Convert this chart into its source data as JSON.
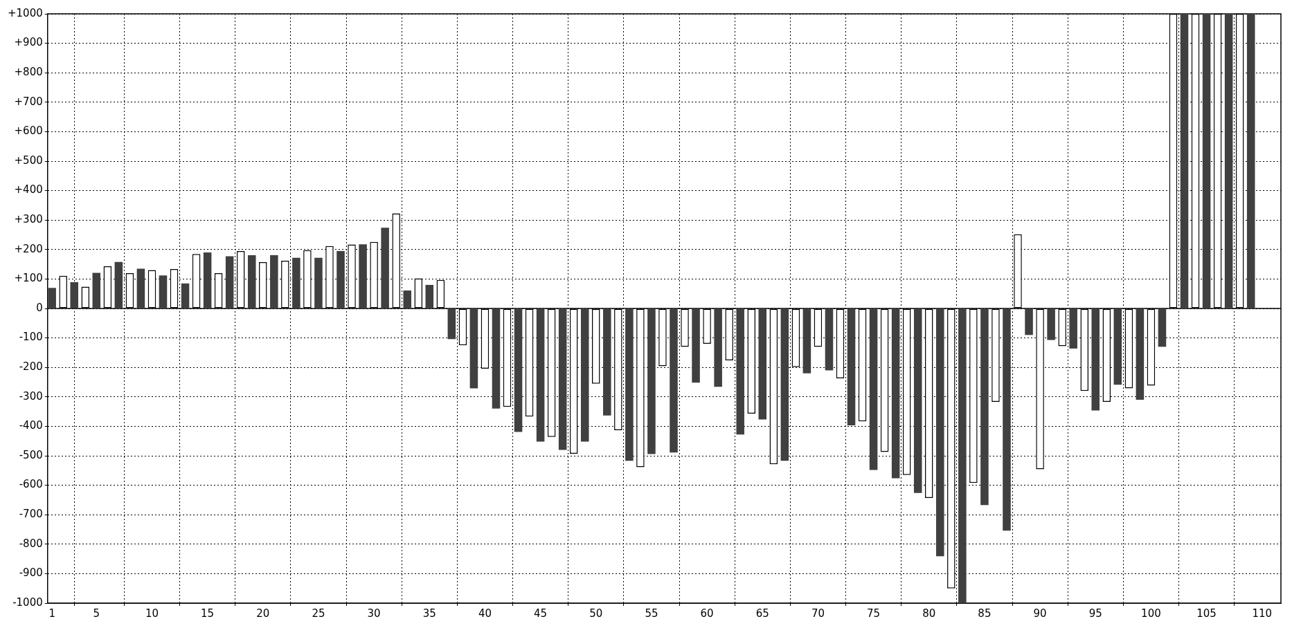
{
  "chart_data": {
    "type": "bar",
    "x": [
      1,
      2,
      3,
      4,
      5,
      6,
      7,
      8,
      9,
      10,
      11,
      12,
      13,
      14,
      15,
      16,
      17,
      18,
      19,
      20,
      21,
      22,
      23,
      24,
      25,
      26,
      27,
      28,
      29,
      30,
      31,
      32,
      33,
      34,
      35,
      36,
      37,
      38,
      39,
      40,
      41,
      42,
      43,
      44,
      45,
      46,
      47,
      48,
      49,
      50,
      51,
      52,
      53,
      54,
      55,
      56,
      57,
      58,
      59,
      60,
      61,
      62,
      63,
      64,
      65,
      66,
      67,
      68,
      69,
      70,
      71,
      72,
      73,
      74,
      75,
      76,
      77,
      78,
      79,
      80,
      81,
      82,
      83,
      84,
      85,
      86,
      87,
      88,
      89,
      90,
      91,
      92,
      93,
      94,
      95,
      96,
      97,
      98,
      99,
      100,
      101,
      102,
      103,
      104,
      105,
      106,
      107,
      108,
      109
    ],
    "values": [
      70,
      111,
      89,
      74,
      121,
      143,
      158,
      120,
      135,
      130,
      112,
      134,
      85,
      185,
      190,
      120,
      177,
      195,
      181,
      157,
      181,
      162,
      172,
      198,
      172,
      212,
      195,
      217,
      218,
      226,
      274,
      323,
      61,
      102,
      80,
      97,
      -104,
      -125,
      -271,
      -204,
      -340,
      -334,
      -419,
      -367,
      -452,
      -436,
      -480,
      -493,
      -452,
      -255,
      -363,
      -413,
      -517,
      -539,
      -494,
      -196,
      -489,
      -130,
      -252,
      -120,
      -266,
      -176,
      -428,
      -357,
      -377,
      -529,
      -517,
      -199,
      -220,
      -130,
      -210,
      -237,
      -397,
      -383,
      -548,
      -487,
      -576,
      -565,
      -626,
      -643,
      -841,
      -950,
      -1000,
      -592,
      -667,
      -317,
      -754,
      252,
      -90,
      -546,
      -107,
      -128,
      -136,
      -280,
      -346,
      -317,
      -259,
      -271,
      -310,
      -262,
      -130,
      1000,
      1000,
      1000,
      1000,
      1000,
      1000,
      1000,
      1000
    ],
    "colors": [
      "#404040",
      "#ffffff",
      "#404040",
      "#ffffff",
      "#404040",
      "#ffffff",
      "#404040",
      "#ffffff",
      "#404040",
      "#ffffff",
      "#404040",
      "#ffffff",
      "#404040",
      "#ffffff",
      "#404040",
      "#ffffff",
      "#404040",
      "#ffffff",
      "#404040",
      "#ffffff",
      "#404040",
      "#ffffff",
      "#404040",
      "#ffffff",
      "#404040",
      "#ffffff",
      "#404040",
      "#ffffff",
      "#404040",
      "#ffffff",
      "#404040",
      "#ffffff",
      "#404040",
      "#ffffff",
      "#404040",
      "#ffffff",
      "#404040",
      "#ffffff",
      "#404040",
      "#ffffff",
      "#404040",
      "#ffffff",
      "#404040",
      "#ffffff",
      "#404040",
      "#ffffff",
      "#404040",
      "#ffffff",
      "#404040",
      "#ffffff",
      "#404040",
      "#ffffff",
      "#404040",
      "#ffffff",
      "#404040",
      "#ffffff",
      "#404040",
      "#ffffff",
      "#404040",
      "#ffffff",
      "#404040",
      "#ffffff",
      "#404040",
      "#ffffff",
      "#404040",
      "#ffffff",
      "#404040",
      "#ffffff",
      "#404040",
      "#ffffff",
      "#404040",
      "#ffffff",
      "#404040",
      "#ffffff",
      "#404040",
      "#ffffff",
      "#404040",
      "#ffffff",
      "#404040",
      "#ffffff",
      "#404040",
      "#ffffff",
      "#404040",
      "#ffffff",
      "#404040",
      "#ffffff",
      "#404040",
      "#ffffff",
      "#404040",
      "#ffffff",
      "#404040",
      "#ffffff",
      "#404040",
      "#ffffff",
      "#404040",
      "#ffffff",
      "#404040",
      "#ffffff",
      "#404040",
      "#ffffff",
      "#404040",
      "#ffffff",
      "#404040",
      "#ffffff",
      "#404040",
      "#ffffff",
      "#404040",
      "#ffffff",
      "#404040"
    ],
    "xlim": [
      0.6,
      111.7
    ],
    "xticks": [
      1,
      5,
      10,
      15,
      20,
      25,
      30,
      35,
      40,
      45,
      50,
      55,
      60,
      65,
      70,
      75,
      80,
      85,
      90,
      95,
      100,
      105,
      110
    ],
    "ylim": [
      -1000,
      1000
    ],
    "yticks": [
      -1000,
      -900,
      -800,
      -700,
      -600,
      -500,
      -400,
      -300,
      -200,
      -100,
      0,
      {
        "value": 100,
        "label": "+100"
      },
      {
        "value": 200,
        "label": "+200"
      },
      {
        "value": 300,
        "label": "+300"
      },
      {
        "value": 400,
        "label": "+400"
      },
      {
        "value": 500,
        "label": "+500"
      },
      {
        "value": 600,
        "label": "+600"
      },
      {
        "value": 700,
        "label": "+700"
      },
      {
        "value": 800,
        "label": "+800"
      },
      {
        "value": 900,
        "label": "+900"
      },
      {
        "value": 1000,
        "label": "+1000"
      }
    ],
    "grid": true,
    "legend": false
  }
}
